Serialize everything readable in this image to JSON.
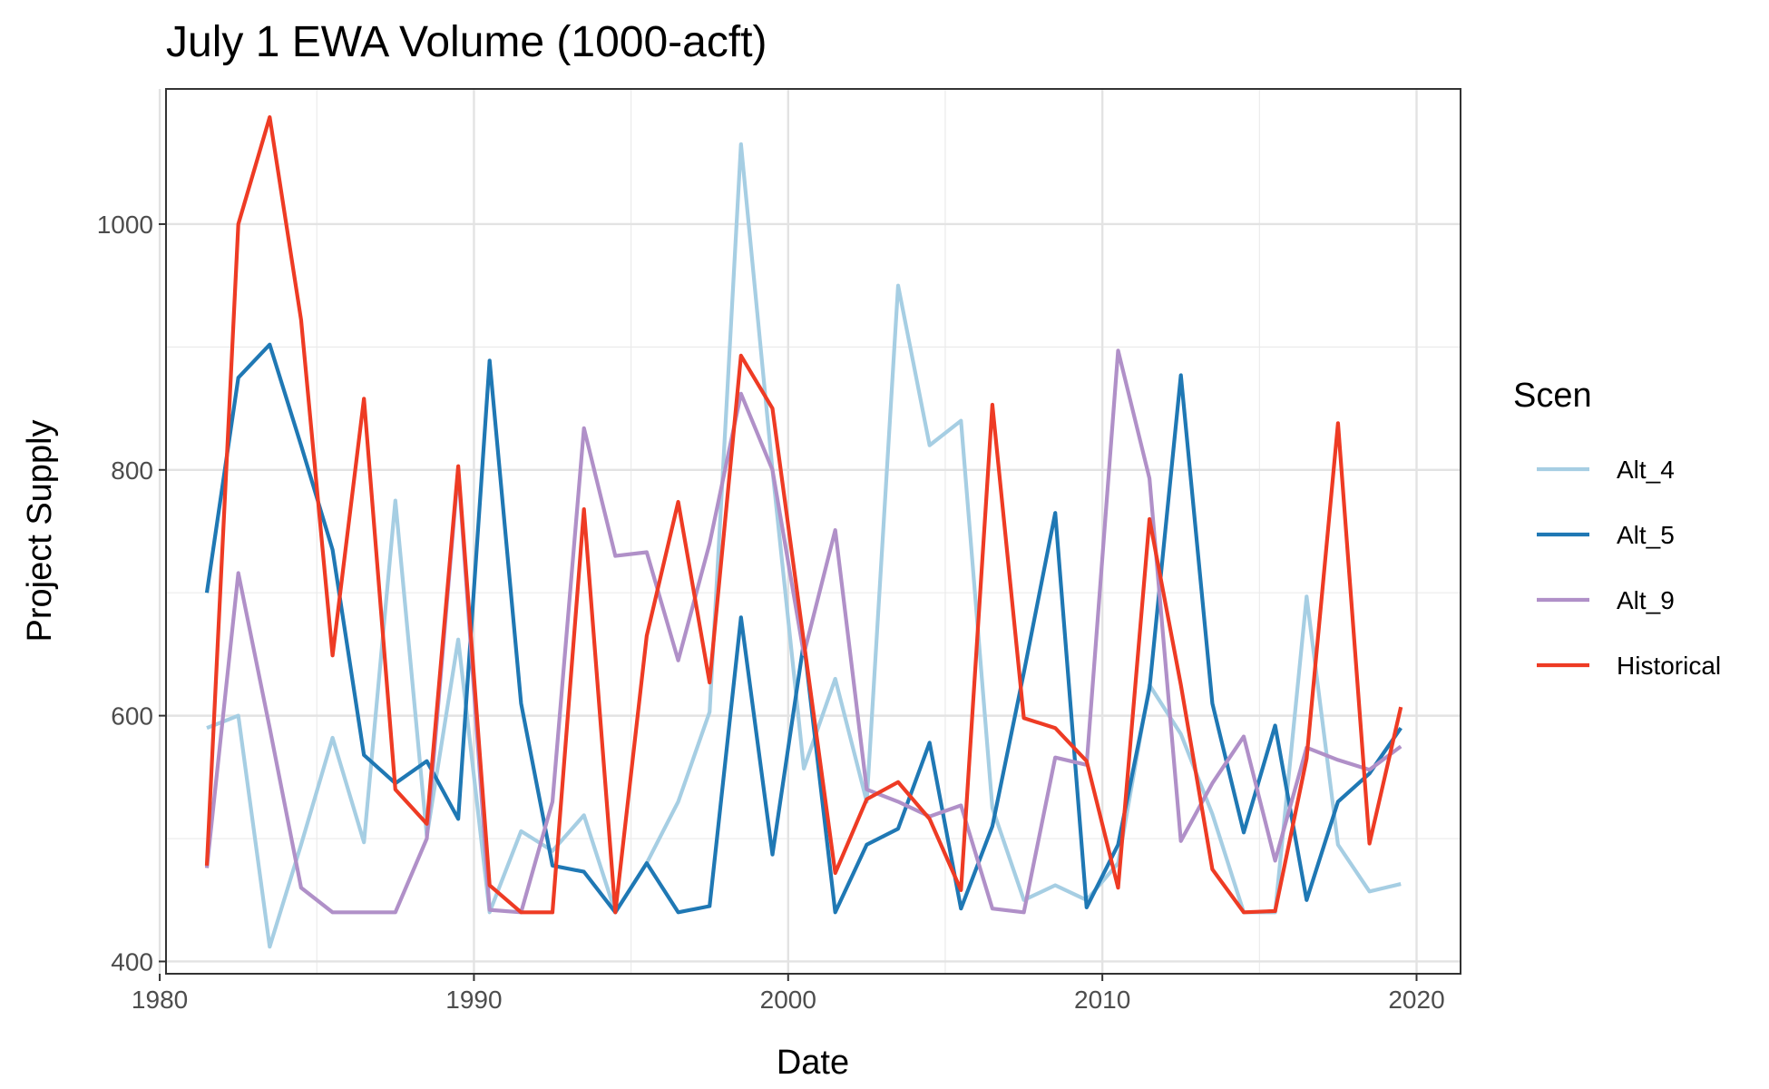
{
  "chart_data": {
    "type": "line",
    "title": "July 1 EWA Volume (1000-acft)",
    "xlabel": "Date",
    "ylabel": "Project Supply",
    "xlim": [
      1980.2,
      2021.4
    ],
    "ylim": [
      390,
      1110
    ],
    "x_ticks": [
      1980,
      1990,
      2000,
      2010,
      2020
    ],
    "x_tick_labels": [
      "1980",
      "1990",
      "2000",
      "2010",
      "2020"
    ],
    "y_ticks": [
      400,
      600,
      800,
      1000
    ],
    "y_tick_labels": [
      "400",
      "600",
      "800",
      "1000"
    ],
    "y_minor_ticks": [
      500,
      700,
      900
    ],
    "x_minor_ticks": [
      1985,
      1995,
      2005,
      2015
    ],
    "grid": true,
    "legend": {
      "title": "Scen",
      "position": "right"
    },
    "x": [
      1981.5,
      1982.5,
      1983.5,
      1984.5,
      1985.5,
      1986.5,
      1987.5,
      1988.5,
      1989.5,
      1990.5,
      1991.5,
      1992.5,
      1993.5,
      1994.5,
      1995.5,
      1996.5,
      1997.5,
      1998.5,
      1999.5,
      2000.5,
      2001.5,
      2002.5,
      2003.5,
      2004.5,
      2005.5,
      2006.5,
      2007.5,
      2008.5,
      2009.5,
      2010.5,
      2011.5,
      2012.5,
      2013.5,
      2014.5,
      2015.5,
      2016.5,
      2017.5,
      2018.5,
      2019.5
    ],
    "series": [
      {
        "name": "Alt_4",
        "color": "#a6cee3",
        "values": [
          590,
          600,
          412,
          495,
          582,
          497,
          775,
          502,
          662,
          440,
          506,
          490,
          519,
          440,
          480,
          530,
          603,
          1065,
          800,
          557,
          630,
          530,
          950,
          820,
          840,
          525,
          450,
          462,
          450,
          480,
          625,
          585,
          520,
          440,
          440,
          697,
          495,
          457,
          463
        ]
      },
      {
        "name": "Alt_5",
        "color": "#1f78b4",
        "values": [
          700,
          875,
          902,
          820,
          735,
          568,
          545,
          563,
          516,
          889,
          610,
          478,
          473,
          440,
          480,
          440,
          445,
          680,
          487,
          660,
          440,
          495,
          508,
          578,
          443,
          510,
          635,
          765,
          444,
          495,
          622,
          877,
          610,
          505,
          592,
          450,
          530,
          553,
          590
        ]
      },
      {
        "name": "Alt_9",
        "color": "#b090c8",
        "values": [
          476,
          716,
          590,
          460,
          440,
          440,
          440,
          500,
          800,
          442,
          440,
          530,
          834,
          730,
          733,
          645,
          740,
          862,
          800,
          650,
          751,
          540,
          530,
          518,
          527,
          443,
          440,
          566,
          560,
          897,
          793,
          498,
          545,
          583,
          482,
          574,
          564,
          556,
          575
        ]
      },
      {
        "name": "Historical",
        "color": "#ee3b24",
        "values": [
          478,
          1000,
          1087,
          922,
          649,
          858,
          540,
          512,
          803,
          462,
          440,
          440,
          768,
          440,
          665,
          774,
          627,
          893,
          850,
          660,
          472,
          532,
          546,
          516,
          458,
          853,
          598,
          590,
          563,
          460,
          760,
          625,
          475,
          440,
          441,
          565,
          838,
          496,
          607
        ]
      }
    ]
  }
}
